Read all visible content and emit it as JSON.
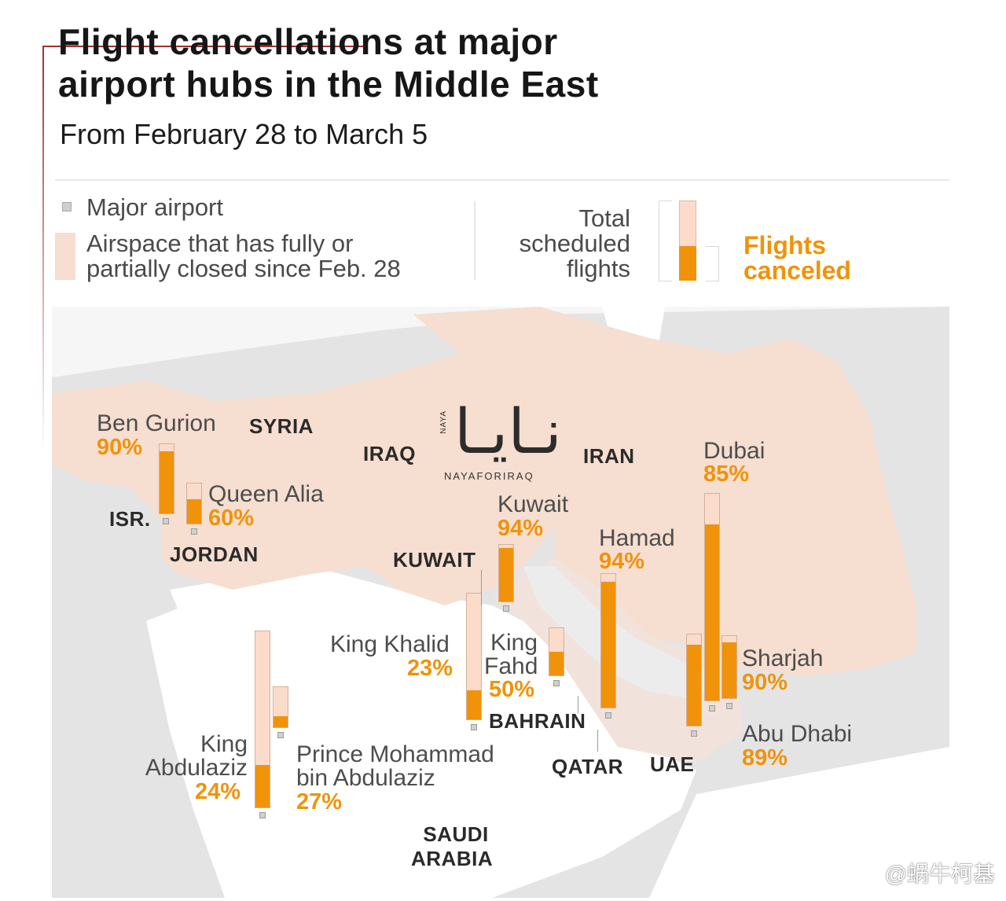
{
  "header": {
    "title_line1": "Flight cancellations at major",
    "title_line2": "airport hubs in the Middle East",
    "subtitle": "From February 28 to March 5"
  },
  "legend": {
    "major_airport": "Major airport",
    "airspace_line1": "Airspace that has fully or",
    "airspace_line2": "partially closed since Feb. 28",
    "total_line1": "Total",
    "total_line2": "scheduled",
    "total_line3": "flights",
    "canceled_line1": "Flights",
    "canceled_line2": "canceled"
  },
  "colors": {
    "canceled": "#f0930a",
    "total_scheduled": "#fbdccb",
    "closed_airspace": "#f6ded0",
    "accent_rule": "#a0302f"
  },
  "countries": {
    "syria": "SYRIA",
    "iraq": "IRAQ",
    "iran": "IRAN",
    "isr": "ISR.",
    "jordan": "JORDAN",
    "kuwait": "KUWAIT",
    "bahrain": "BAHRAIN",
    "qatar": "QATAR",
    "uae": "UAE",
    "saudi_line1": "SAUDI",
    "saudi_line2": "ARABIA"
  },
  "airports": {
    "ben_gurion": {
      "name": "Ben Gurion",
      "pct": "90%",
      "canceled_share": 0.9
    },
    "queen_alia": {
      "name": "Queen Alia",
      "pct": "60%",
      "canceled_share": 0.6
    },
    "kuwait": {
      "name": "Kuwait",
      "pct": "94%",
      "canceled_share": 0.94
    },
    "hamad": {
      "name": "Hamad",
      "pct": "94%",
      "canceled_share": 0.94
    },
    "dubai": {
      "name": "Dubai",
      "pct": "85%",
      "canceled_share": 0.85
    },
    "sharjah": {
      "name": "Sharjah",
      "pct": "90%",
      "canceled_share": 0.9
    },
    "abu_dhabi": {
      "name": "Abu Dhabi",
      "pct": "89%",
      "canceled_share": 0.89
    },
    "king_khalid": {
      "name": "King Khalid",
      "pct": "23%",
      "canceled_share": 0.23
    },
    "king_fahd": {
      "name_line1": "King",
      "name_line2": "Fahd",
      "pct": "50%",
      "canceled_share": 0.5
    },
    "king_abdulaziz": {
      "name_line1": "King",
      "name_line2": "Abdulaziz",
      "pct": "24%",
      "canceled_share": 0.24
    },
    "prince_mohammad": {
      "name_line1": "Prince Mohammad",
      "name_line2": "bin Abdulaziz",
      "pct": "27%",
      "canceled_share": 0.27
    }
  },
  "watermarks": {
    "arabic": "نـايـا",
    "vertical": "NAYA",
    "handle": "NAYAFORIRAQ",
    "footer": "@蜗牛柯基"
  }
}
